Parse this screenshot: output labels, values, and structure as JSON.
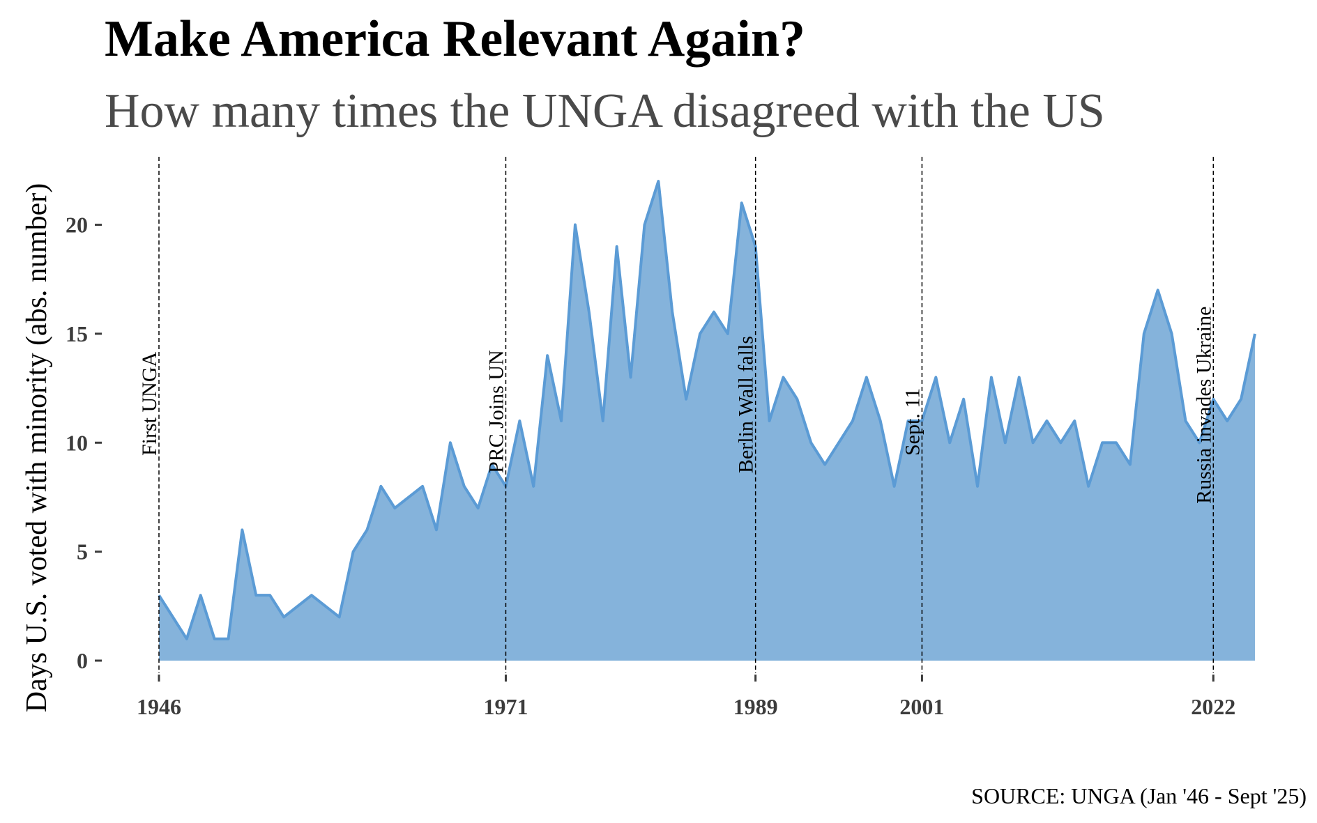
{
  "chart_data": {
    "type": "area",
    "title": "Make America Relevant Again?",
    "subtitle": "How many times the UNGA disagreed with the US",
    "xlabel": "",
    "ylabel": "Days U.S. voted with minority (abs. number)",
    "caption": "SOURCE: UNGA (Jan '46 - Sept '25)",
    "xlim": [
      1946,
      2025
    ],
    "ylim": [
      0,
      22
    ],
    "x_ticks": [
      1946,
      1971,
      1989,
      2001,
      2022
    ],
    "y_ticks": [
      0,
      5,
      10,
      15,
      20
    ],
    "grid": false,
    "fill_color": "#85b3db",
    "line_color": "#5b9bd5",
    "series": [
      {
        "name": "Days U.S. voted with minority",
        "x": [
          1946,
          1947,
          1948,
          1949,
          1950,
          1951,
          1952,
          1953,
          1954,
          1955,
          1956,
          1957,
          1958,
          1959,
          1960,
          1961,
          1962,
          1963,
          1964,
          1965,
          1966,
          1967,
          1968,
          1969,
          1970,
          1971,
          1972,
          1973,
          1974,
          1975,
          1976,
          1977,
          1978,
          1979,
          1980,
          1981,
          1982,
          1983,
          1984,
          1985,
          1986,
          1987,
          1988,
          1989,
          1990,
          1991,
          1992,
          1993,
          1994,
          1995,
          1996,
          1997,
          1998,
          1999,
          2000,
          2001,
          2002,
          2003,
          2004,
          2005,
          2006,
          2007,
          2008,
          2009,
          2010,
          2011,
          2012,
          2013,
          2014,
          2015,
          2016,
          2017,
          2018,
          2019,
          2020,
          2021,
          2022,
          2023,
          2024,
          2025
        ],
        "values": [
          3,
          2,
          1,
          3,
          1,
          1,
          6,
          3,
          3,
          2,
          2.5,
          3,
          2.5,
          2,
          5,
          6,
          8,
          7,
          7.5,
          8,
          6,
          10,
          8,
          7,
          9,
          8,
          11,
          8,
          14,
          11,
          20,
          16,
          11,
          19,
          13,
          20,
          22,
          16,
          12,
          15,
          16,
          15,
          21,
          19,
          11,
          13,
          12,
          10,
          9,
          10,
          11,
          13,
          11,
          8,
          11,
          11,
          13,
          10,
          12,
          8,
          13,
          10,
          13,
          10,
          11,
          10,
          11,
          8,
          10,
          10,
          9,
          15,
          17,
          15,
          11,
          10,
          12,
          11,
          12,
          15
        ]
      }
    ],
    "events": [
      {
        "year": 1946,
        "label": "First UNGA"
      },
      {
        "year": 1971,
        "label": "PRC Joins UN"
      },
      {
        "year": 1989,
        "label": "Berlin Wall falls"
      },
      {
        "year": 2001,
        "label": "Sept. 11"
      },
      {
        "year": 2022,
        "label": "Russia invades Ukraine"
      }
    ]
  }
}
